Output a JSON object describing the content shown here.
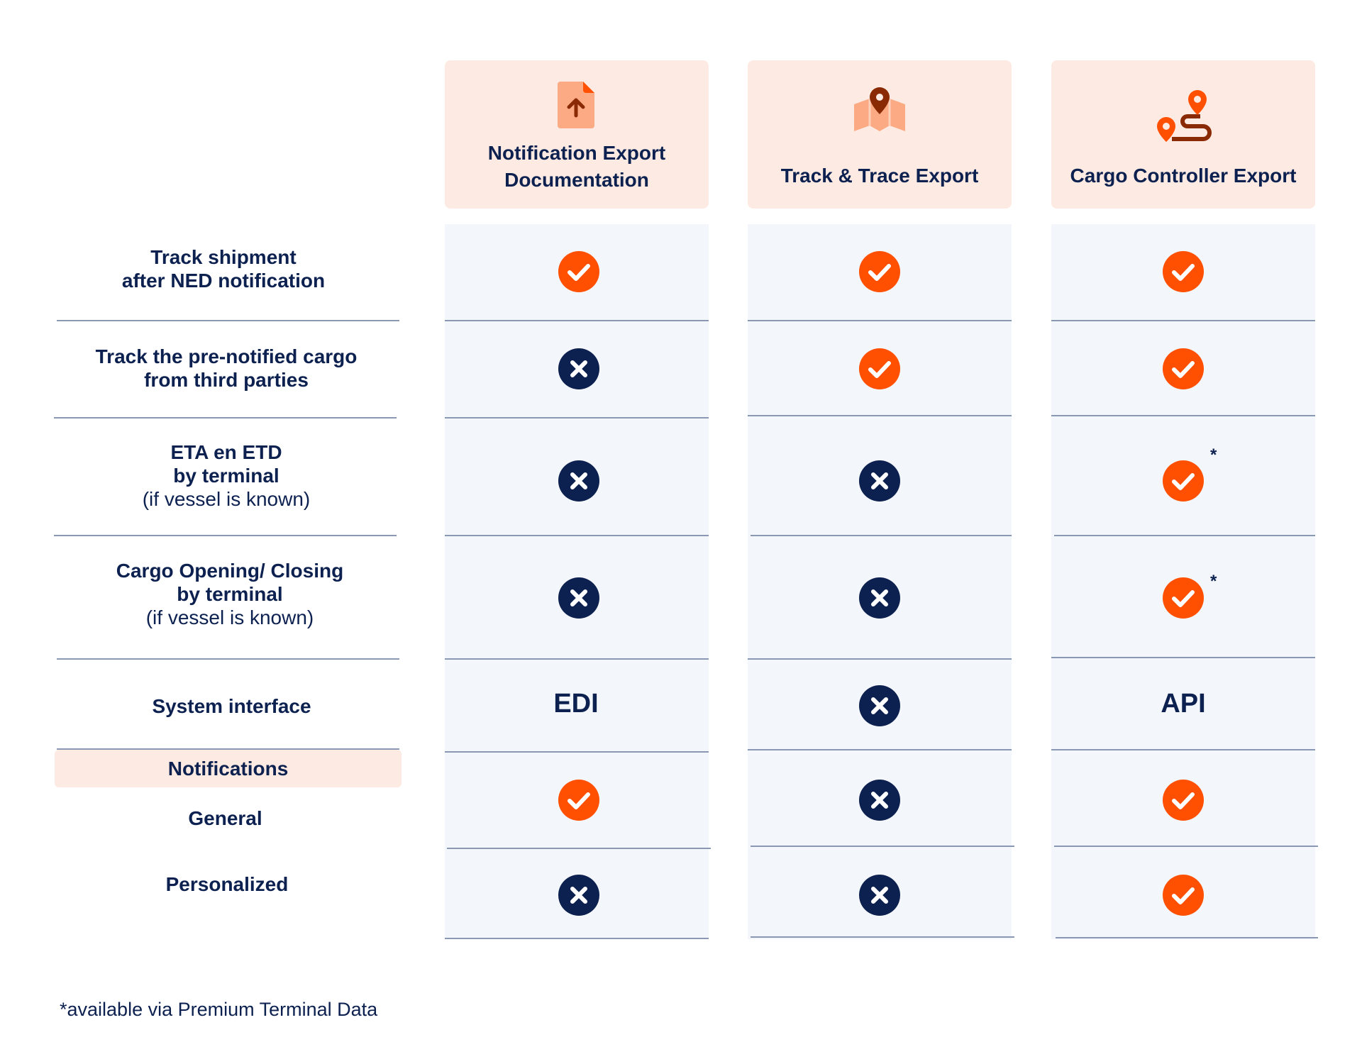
{
  "columns": [
    {
      "title_line1": "Notification Export",
      "title_line2": "Documentation",
      "icon": "document-upload-icon"
    },
    {
      "title": "Track & Trace Export",
      "icon": "map-pin-icon"
    },
    {
      "title": "Cargo Controller Export",
      "icon": "route-icon"
    }
  ],
  "rows": [
    {
      "line1": "Track shipment",
      "line2": "after NED notification",
      "values": [
        "check",
        "check",
        "check"
      ]
    },
    {
      "line1": "Track the pre-notified cargo",
      "line2": "from third parties",
      "values": [
        "cross",
        "check",
        "check"
      ]
    },
    {
      "line1": "ETA en ETD",
      "line2": "by terminal",
      "line3": "(if vessel is known)",
      "values": [
        "cross",
        "cross",
        "check"
      ],
      "star": "*"
    },
    {
      "line1": "Cargo Opening/ Closing",
      "line2": "by terminal",
      "line3": "(if vessel is known)",
      "values": [
        "cross",
        "cross",
        "check"
      ],
      "star": "*"
    },
    {
      "line1": "System interface",
      "values": [
        "EDI",
        "cross",
        "API"
      ]
    }
  ],
  "notifications": {
    "header": "Notifications",
    "rows": [
      {
        "label": "General",
        "values": [
          "check",
          "cross",
          "check"
        ]
      },
      {
        "label": "Personalized",
        "values": [
          "cross",
          "cross",
          "check"
        ]
      }
    ]
  },
  "footnote": "*available via Premium Terminal Data",
  "colors": {
    "check": "#fe5000",
    "cross": "#0d2150",
    "header_bg": "#fdeae2",
    "column_bg": "#f3f6fb"
  }
}
